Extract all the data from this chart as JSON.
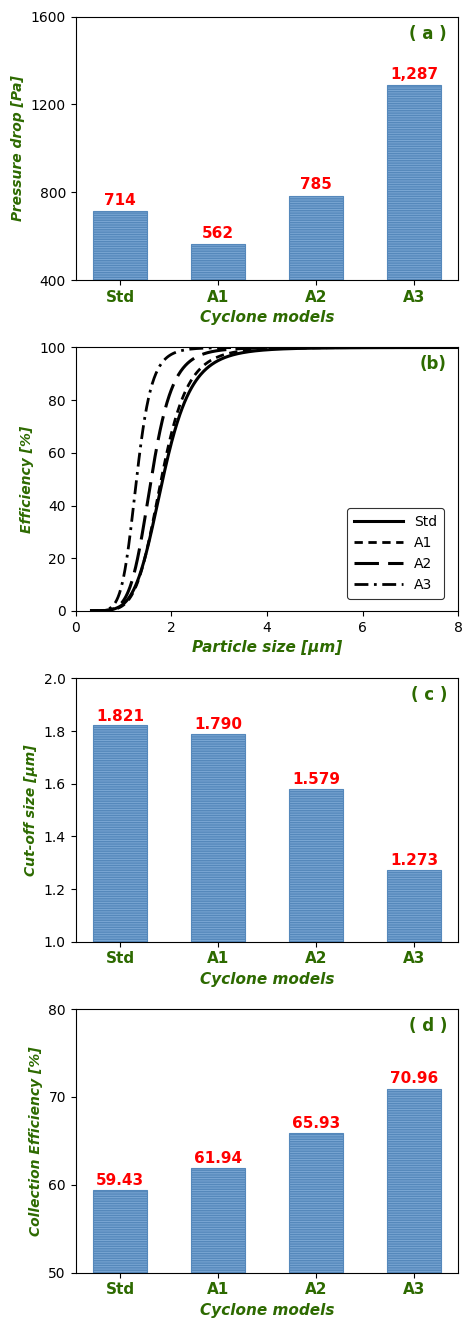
{
  "panel_a": {
    "categories": [
      "Std",
      "A1",
      "A2",
      "A3"
    ],
    "values": [
      714,
      562,
      785,
      1287
    ],
    "ylabel": "Pressure drop [Pa]",
    "xlabel": "Cyclone models",
    "ylim": [
      400,
      1600
    ],
    "yticks": [
      400,
      800,
      1200,
      1600
    ],
    "label": "( a )",
    "bar_color": "#7BA7D4",
    "value_color": "#FF0000",
    "label_color": "#2D6A00",
    "axis_label_color": "#2D6A00",
    "tick_label_color": "#000000",
    "spine_color": "#000000"
  },
  "panel_b": {
    "ylabel": "Efficiency [%]",
    "xlabel": "Particle size [μm]",
    "xlim": [
      0,
      8
    ],
    "ylim": [
      0,
      100
    ],
    "xticks": [
      0,
      2,
      4,
      6,
      8
    ],
    "yticks": [
      0,
      20,
      40,
      60,
      80,
      100
    ],
    "label": "(b)",
    "label_color": "#2D6A00",
    "axis_label_color": "#2D6A00",
    "tick_label_color": "#000000",
    "spine_color": "#000000",
    "line_color": "#000000",
    "cutoffs": [
      1.821,
      1.79,
      1.579,
      1.273
    ],
    "exponents": [
      6.0,
      6.5,
      7.0,
      8.0
    ],
    "legend": [
      "Std",
      "A1",
      "A2",
      "A3"
    ]
  },
  "panel_c": {
    "categories": [
      "Std",
      "A1",
      "A2",
      "A3"
    ],
    "values": [
      1.821,
      1.79,
      1.579,
      1.273
    ],
    "ylabel": "Cut-off size [μm]",
    "xlabel": "Cyclone models",
    "ylim": [
      1.0,
      2.0
    ],
    "yticks": [
      1.0,
      1.2,
      1.4,
      1.6,
      1.8,
      2.0
    ],
    "label": "( c )",
    "bar_color": "#7BA7D4",
    "value_color": "#FF0000",
    "label_color": "#2D6A00",
    "axis_label_color": "#2D6A00",
    "tick_label_color": "#000000",
    "spine_color": "#000000"
  },
  "panel_d": {
    "categories": [
      "Std",
      "A1",
      "A2",
      "A3"
    ],
    "values": [
      59.43,
      61.94,
      65.93,
      70.96
    ],
    "ylabel": "Collection Efficiency [%]",
    "xlabel": "Cyclone models",
    "ylim": [
      50,
      80
    ],
    "yticks": [
      50,
      60,
      70,
      80
    ],
    "label": "( d )",
    "bar_color": "#7BA7D4",
    "value_color": "#FF0000",
    "label_color": "#2D6A00",
    "axis_label_color": "#2D6A00",
    "tick_label_color": "#000000",
    "spine_color": "#000000"
  }
}
